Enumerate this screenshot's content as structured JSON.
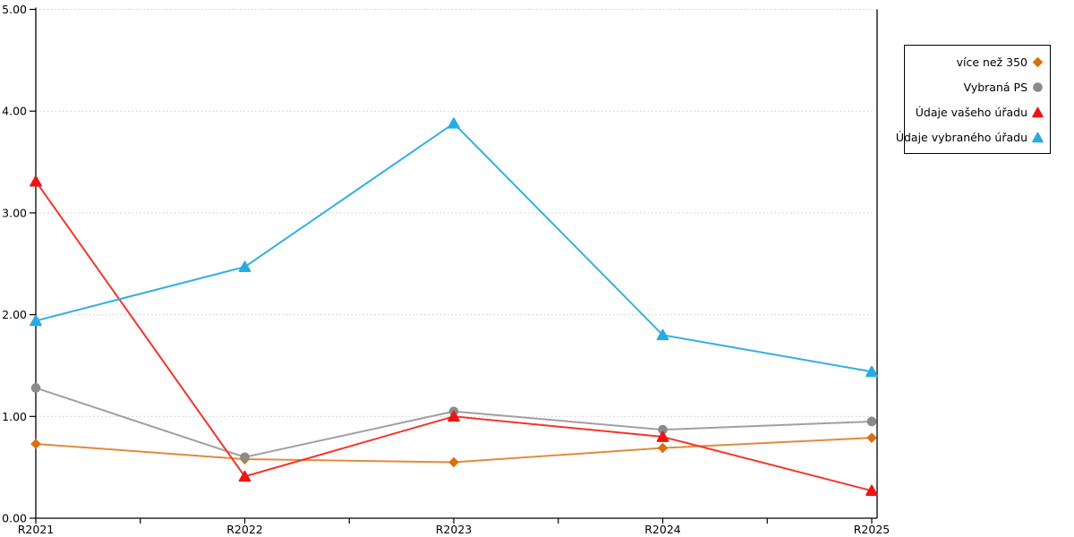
{
  "chart_data": {
    "type": "line",
    "title": "",
    "xlabel": "",
    "ylabel": "",
    "categories": [
      "R2021",
      "R2022",
      "R2023",
      "R2024",
      "R2025"
    ],
    "series": [
      {
        "name": "více než 350",
        "marker": "diamond",
        "marker_color": "#D9700E",
        "line_color": "#E28A3C",
        "values": [
          0.73,
          0.58,
          0.55,
          0.69,
          0.79
        ]
      },
      {
        "name": "Vybraná PS",
        "marker": "circle",
        "marker_color": "#8A8A8A",
        "line_color": "#A0A0A0",
        "values": [
          1.28,
          0.6,
          1.05,
          0.87,
          0.95
        ]
      },
      {
        "name": "Údaje vašeho úřadu",
        "marker": "triangle",
        "marker_color": "#EE1414",
        "line_color": "#F5342A",
        "values": [
          3.31,
          0.41,
          1.0,
          0.8,
          0.27
        ]
      },
      {
        "name": "Údaje vybraného úřadu",
        "marker": "triangle",
        "marker_color": "#29ABE2",
        "line_color": "#33AFE3",
        "values": [
          1.94,
          2.47,
          3.88,
          1.8,
          1.44
        ]
      }
    ],
    "ylim": [
      0,
      5
    ],
    "y_ticks": [
      "0.00",
      "1.00",
      "2.00",
      "3.00",
      "4.00",
      "5.00"
    ],
    "grid": "horizontal-dotted",
    "grid_color": "#C9C9C9",
    "axis_color": "#000000",
    "text_color": "#000000",
    "legend_position": "right"
  }
}
